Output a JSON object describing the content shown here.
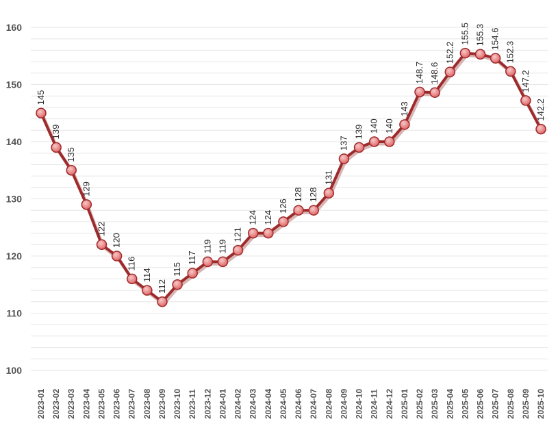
{
  "chart_data": {
    "type": "line",
    "title": "",
    "xlabel": "",
    "ylabel": "",
    "ylim": [
      100,
      160
    ],
    "yticks": [
      100,
      110,
      120,
      130,
      140,
      150,
      160
    ],
    "grid": true,
    "legend": "none",
    "colors": {
      "line": "#9e2a2b",
      "marker": "#e06666",
      "grid": "#e6e6e6",
      "text": "#555555"
    },
    "categories": [
      "2023-01",
      "2023-02",
      "2023-03",
      "2023-04",
      "2023-05",
      "2023-06",
      "2023-07",
      "2023-08",
      "2023-09",
      "2023-10",
      "2023-11",
      "2023-12",
      "2024-01",
      "2024-02",
      "2024-03",
      "2024-04",
      "2024-05",
      "2024-06",
      "2024-07",
      "2024-08",
      "2024-09",
      "2024-10",
      "2024-11",
      "2024-12",
      "2025-01",
      "2025-02",
      "2025-03",
      "2025-04",
      "2025-05",
      "2025-06",
      "2025-07",
      "2025-08",
      "2025-09",
      "2025-10"
    ],
    "series": [
      {
        "values": [
          145,
          139,
          135,
          129,
          122,
          120,
          116,
          114,
          112,
          115,
          117,
          119,
          119,
          121,
          124,
          124,
          126,
          128,
          128,
          131,
          137,
          139,
          140,
          140,
          143,
          148.7,
          148.6,
          152.2,
          155.5,
          155.3,
          154.6,
          152.3,
          147.2,
          142.2
        ],
        "labels": [
          "145",
          "139",
          "135",
          "129",
          "122",
          "120",
          "116",
          "114",
          "112",
          "115",
          "117",
          "119",
          "119",
          "121",
          "124",
          "124",
          "126",
          "128",
          "128",
          "131",
          "137",
          "139",
          "140",
          "140",
          "143",
          "148.7",
          "148.6",
          "152.2",
          "155.5",
          "155.3",
          "154.6",
          "152.3",
          "147.2",
          "142.2"
        ]
      }
    ]
  }
}
